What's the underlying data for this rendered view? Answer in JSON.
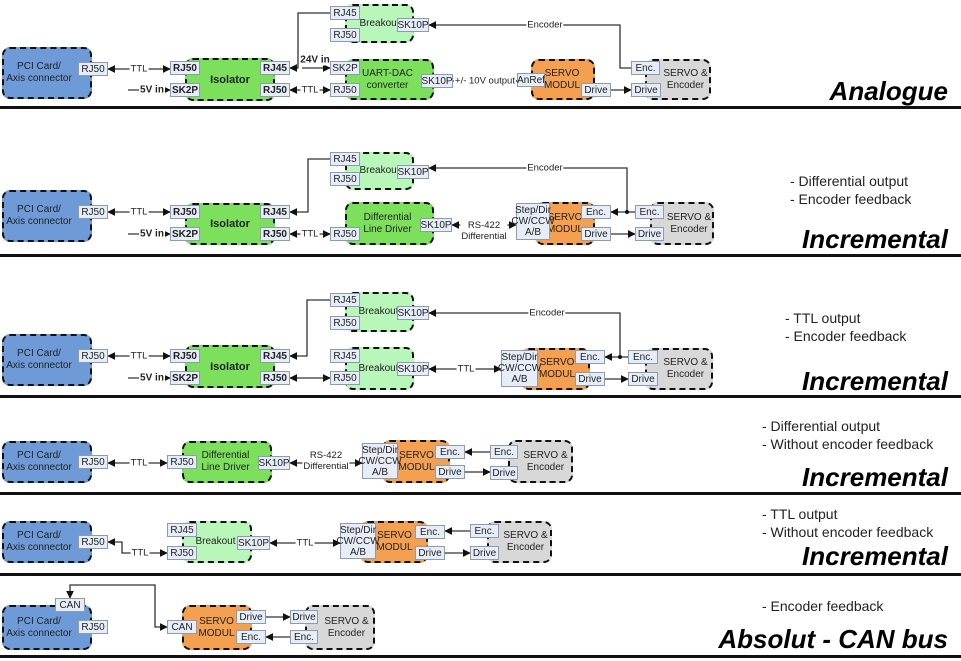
{
  "colors": {
    "pci": "#6f9ad8",
    "green": "#7de05d",
    "light_green": "#b9f6b9",
    "servo": "#f5a050",
    "motor": "#d8d8d8",
    "port": "#e6edf7"
  },
  "sections": [
    {
      "title": "Analogue",
      "notes": [],
      "blocks": [
        "PCI Card/\nAxis connector",
        "Isolator",
        "Breakout",
        "UART-DAC\nconverter",
        "SERVO\nMODUL",
        "SERVO &\nEncoder"
      ],
      "ports": [
        "RJ50",
        "RJ50",
        "SK2P",
        "RJ45",
        "RJ50",
        "RJ45",
        "RJ50",
        "SK10P",
        "SK2P",
        "RJ50",
        "SK10P",
        "AnRef",
        "Drive",
        "Enc.",
        "Drive"
      ],
      "labels": [
        "TTL",
        "5V in",
        "24V in",
        "TTL",
        "+/- 10V output",
        "Encoder"
      ]
    },
    {
      "title": "Incremental",
      "notes": [
        "- Differential output",
        "- Encoder feedback"
      ],
      "blocks": [
        "PCI Card/\nAxis connector",
        "Isolator",
        "Breakout",
        "Differential\nLine Driver",
        "SERVO\nMODUL",
        "SERVO &\nEncoder"
      ],
      "ports": [
        "RJ50",
        "RJ50",
        "SK2P",
        "RJ45",
        "RJ50",
        "RJ45",
        "RJ50",
        "SK10P",
        "RJ50",
        "SK10P",
        "Step/Dir\nCW/CCW\nA/B",
        "Enc.",
        "Drive",
        "Enc.",
        "Drive"
      ],
      "labels": [
        "TTL",
        "5V in",
        "TTL",
        "RS-422\nDifferential",
        "Encoder"
      ]
    },
    {
      "title": "Incremental",
      "notes": [
        "- TTL output",
        "- Encoder feedback"
      ],
      "blocks": [
        "PCI Card/\nAxis connector",
        "Isolator",
        "Breakout",
        "Breakout",
        "SERVO\nMODUL",
        "SERVO &\nEncoder"
      ],
      "ports": [
        "RJ50",
        "RJ50",
        "SK2P",
        "RJ45",
        "RJ50",
        "RJ45",
        "RJ50",
        "SK10P",
        "RJ45",
        "RJ50",
        "SK10P",
        "Step/Dir\nCW/CCW\nA/B",
        "Enc.",
        "Drive",
        "Enc.",
        "Drive"
      ],
      "labels": [
        "TTL",
        "5V in",
        "TTL",
        "Encoder"
      ]
    },
    {
      "title": "Incremental",
      "notes": [
        "- Differential output",
        "- Without encoder feedback"
      ],
      "blocks": [
        "PCI Card/\nAxis connector",
        "Differential\nLine Driver",
        "SERVO\nMODUL",
        "SERVO &\nEncoder"
      ],
      "ports": [
        "RJ50",
        "RJ50",
        "SK10P",
        "Step/Dir\nCW/CCW\nA/B",
        "Enc.",
        "Drive",
        "Enc.",
        "Drive"
      ],
      "labels": [
        "TTL",
        "RS-422\nDifferential"
      ]
    },
    {
      "title": "Incremental",
      "notes": [
        "- TTL output",
        "- Without encoder feedback"
      ],
      "blocks": [
        "PCI Card/\nAxis connector",
        "Breakout",
        "SERVO\nMODUL",
        "SERVO &\nEncoder"
      ],
      "ports": [
        "RJ50",
        "RJ45",
        "RJ50",
        "SK10P",
        "Step/Dir\nCW/CCW\nA/B",
        "Enc.",
        "Drive",
        "Enc.",
        "Drive"
      ],
      "labels": [
        "TTL",
        "TTL"
      ]
    },
    {
      "title": "Absolut - CAN bus",
      "notes": [
        "- Encoder feedback"
      ],
      "blocks": [
        "PCI Card/\nAxis connector",
        "SERVO\nMODUL",
        "SERVO &\nEncoder"
      ],
      "ports": [
        "CAN",
        "RJ50",
        "CAN",
        "Drive",
        "Enc.",
        "Drive",
        "Enc."
      ],
      "labels": []
    }
  ]
}
